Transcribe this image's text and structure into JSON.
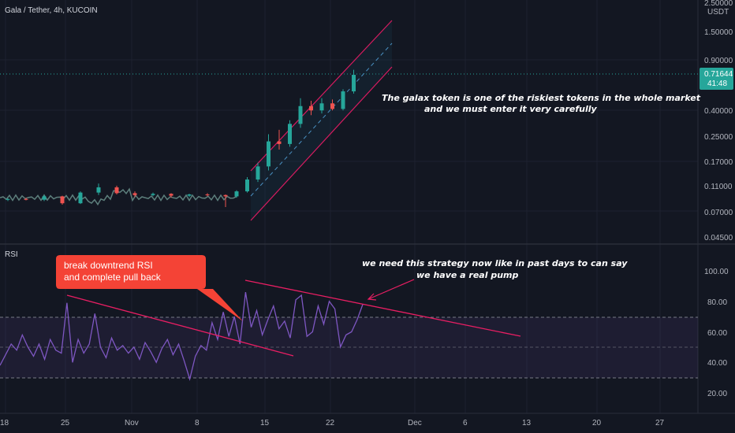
{
  "header": {
    "symbol_title": "Gala / Tether, 4h, KUCOIN"
  },
  "price_axis": {
    "currency": "USDT",
    "ticks": [
      "2.50000",
      "1.50000",
      "0.90000",
      "0.71644",
      "0.40000",
      "0.25000",
      "0.17000",
      "0.11000",
      "0.07000",
      "0.04500"
    ]
  },
  "price_badge": {
    "price": "0.71644",
    "countdown": "41:48",
    "color": "#26a69a"
  },
  "rsi_pane": {
    "title": "RSI",
    "ticks": [
      "100.00",
      "80.00",
      "60.00",
      "40.00",
      "20.00"
    ],
    "upper_band": 70,
    "middle": 50,
    "lower_band": 30,
    "line_color": "#7e57c2"
  },
  "time_axis": {
    "labels": [
      "18",
      "25",
      "Nov",
      "8",
      "15",
      "22",
      "Dec",
      "6",
      "13",
      "20",
      "27"
    ]
  },
  "annotations": {
    "main_note_line1": "The galax token is one of the riskiest tokens in the whole market",
    "main_note_line2": "and we must enter it very carefully",
    "rsi_note_line1": "we need this strategy now like in past days to can say",
    "rsi_note_line2": "we have a real pump",
    "callout_line1": "break downtrend RSI",
    "callout_line2": "and complete pull back"
  },
  "colors": {
    "background": "#131722",
    "up": "#26a69a",
    "down": "#ef5350",
    "channel": "#d81b60",
    "trendline": "#e91e63",
    "callout": "#f44336"
  },
  "chart_data": {
    "type": "candlestick",
    "price_scale": "log",
    "y_range": [
      0.045,
      2.5
    ],
    "current_price": 0.71644,
    "candles_ohlc_approx": [
      [
        0.085,
        0.087,
        0.083,
        0.086
      ],
      [
        0.086,
        0.088,
        0.084,
        0.085
      ],
      [
        0.085,
        0.092,
        0.083,
        0.09
      ],
      [
        0.09,
        0.091,
        0.078,
        0.08
      ],
      [
        0.08,
        0.098,
        0.079,
        0.096
      ],
      [
        0.096,
        0.112,
        0.092,
        0.105
      ],
      [
        0.105,
        0.108,
        0.093,
        0.095
      ],
      [
        0.095,
        0.098,
        0.089,
        0.092
      ],
      [
        0.092,
        0.096,
        0.09,
        0.094
      ],
      [
        0.094,
        0.095,
        0.088,
        0.091
      ],
      [
        0.091,
        0.094,
        0.089,
        0.093
      ],
      [
        0.093,
        0.095,
        0.09,
        0.092
      ],
      [
        0.092,
        0.093,
        0.075,
        0.09
      ],
      [
        0.09,
        0.1,
        0.088,
        0.098
      ],
      [
        0.098,
        0.125,
        0.096,
        0.12
      ],
      [
        0.12,
        0.16,
        0.115,
        0.15
      ],
      [
        0.15,
        0.26,
        0.14,
        0.23
      ],
      [
        0.23,
        0.28,
        0.2,
        0.22
      ],
      [
        0.22,
        0.33,
        0.21,
        0.31
      ],
      [
        0.31,
        0.48,
        0.29,
        0.42
      ],
      [
        0.42,
        0.46,
        0.36,
        0.39
      ],
      [
        0.39,
        0.48,
        0.37,
        0.44
      ],
      [
        0.44,
        0.47,
        0.39,
        0.4
      ],
      [
        0.4,
        0.56,
        0.39,
        0.54
      ],
      [
        0.54,
        0.78,
        0.52,
        0.716
      ]
    ],
    "rsi": {
      "range": [
        0,
        100
      ],
      "bands": [
        30,
        50,
        70
      ],
      "values_approx": [
        38,
        45,
        52,
        48,
        58,
        50,
        44,
        52,
        42,
        55,
        48,
        46,
        79,
        40,
        55,
        46,
        52,
        72,
        50,
        43,
        56,
        48,
        51,
        46,
        50,
        42,
        53,
        47,
        40,
        49,
        55,
        45,
        52,
        41,
        29,
        44,
        51,
        48,
        66,
        55,
        73,
        57,
        70,
        52,
        86,
        63,
        74,
        58,
        68,
        77,
        62,
        67,
        56,
        81,
        84,
        57,
        60,
        77,
        65,
        80,
        75,
        50,
        58,
        60,
        68,
        78
      ]
    },
    "channel": "ascending parallel price channel",
    "rsi_trendlines": [
      "descending (broken)",
      "descending (resistance)"
    ]
  }
}
